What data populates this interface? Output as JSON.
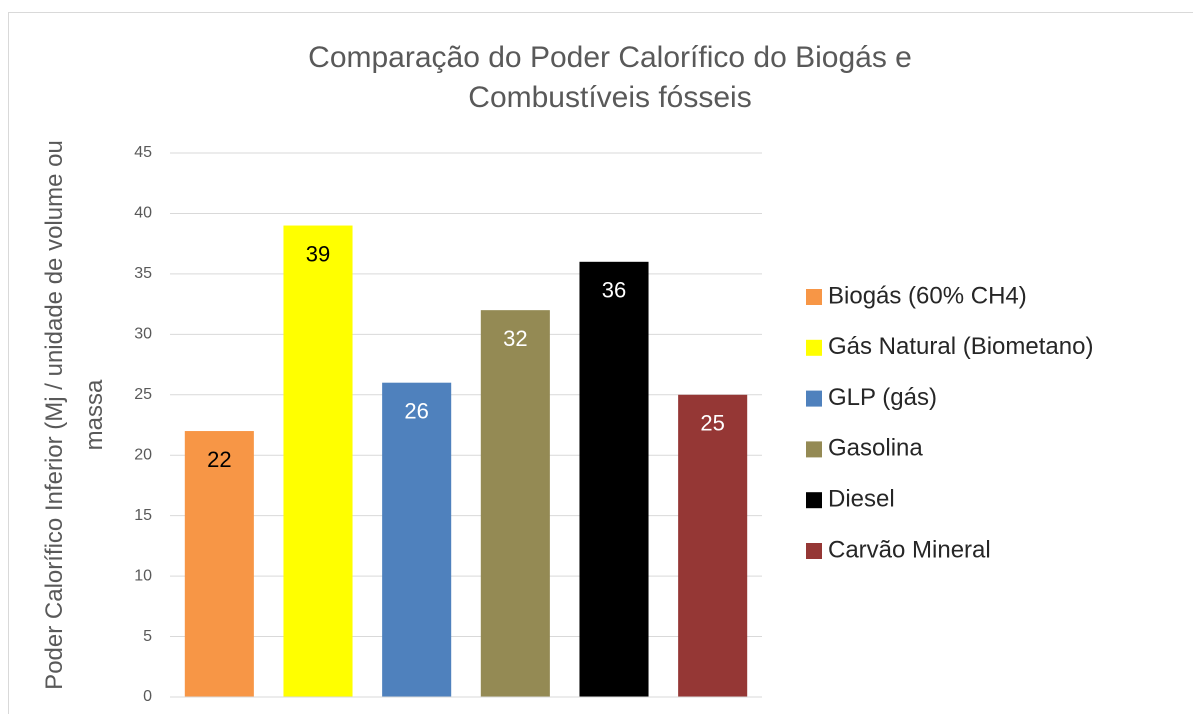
{
  "chart_data": {
    "type": "bar",
    "title": "Comparação do Poder Calorífico do Biogás e Combustíveis fósseis",
    "y_label": "Poder Calorífico Inferior (Mj / unidade de volume ou massa",
    "categories": [
      null
    ],
    "series": [
      {
        "name": "Biogás (60% CH4)",
        "color": "#f79646",
        "values": [
          22
        ]
      },
      {
        "name": "Gás Natural (Biometano)",
        "color": "#ffff00",
        "values": [
          39
        ]
      },
      {
        "name": "GLP (gás)",
        "color": "#4f81bd",
        "values": [
          26
        ]
      },
      {
        "name": "Gasolina",
        "color": "#948a54",
        "values": [
          32
        ]
      },
      {
        "name": "Diesel",
        "color": "#000000",
        "values": [
          36
        ]
      },
      {
        "name": "Carvão Mineral",
        "color": "#953735",
        "values": [
          25
        ]
      }
    ],
    "ylim": [
      0,
      45
    ],
    "yticks": [
      0,
      5,
      10,
      15,
      20,
      25,
      30,
      35,
      40,
      45
    ],
    "grid": true,
    "legend": "right",
    "data_labels": true
  }
}
